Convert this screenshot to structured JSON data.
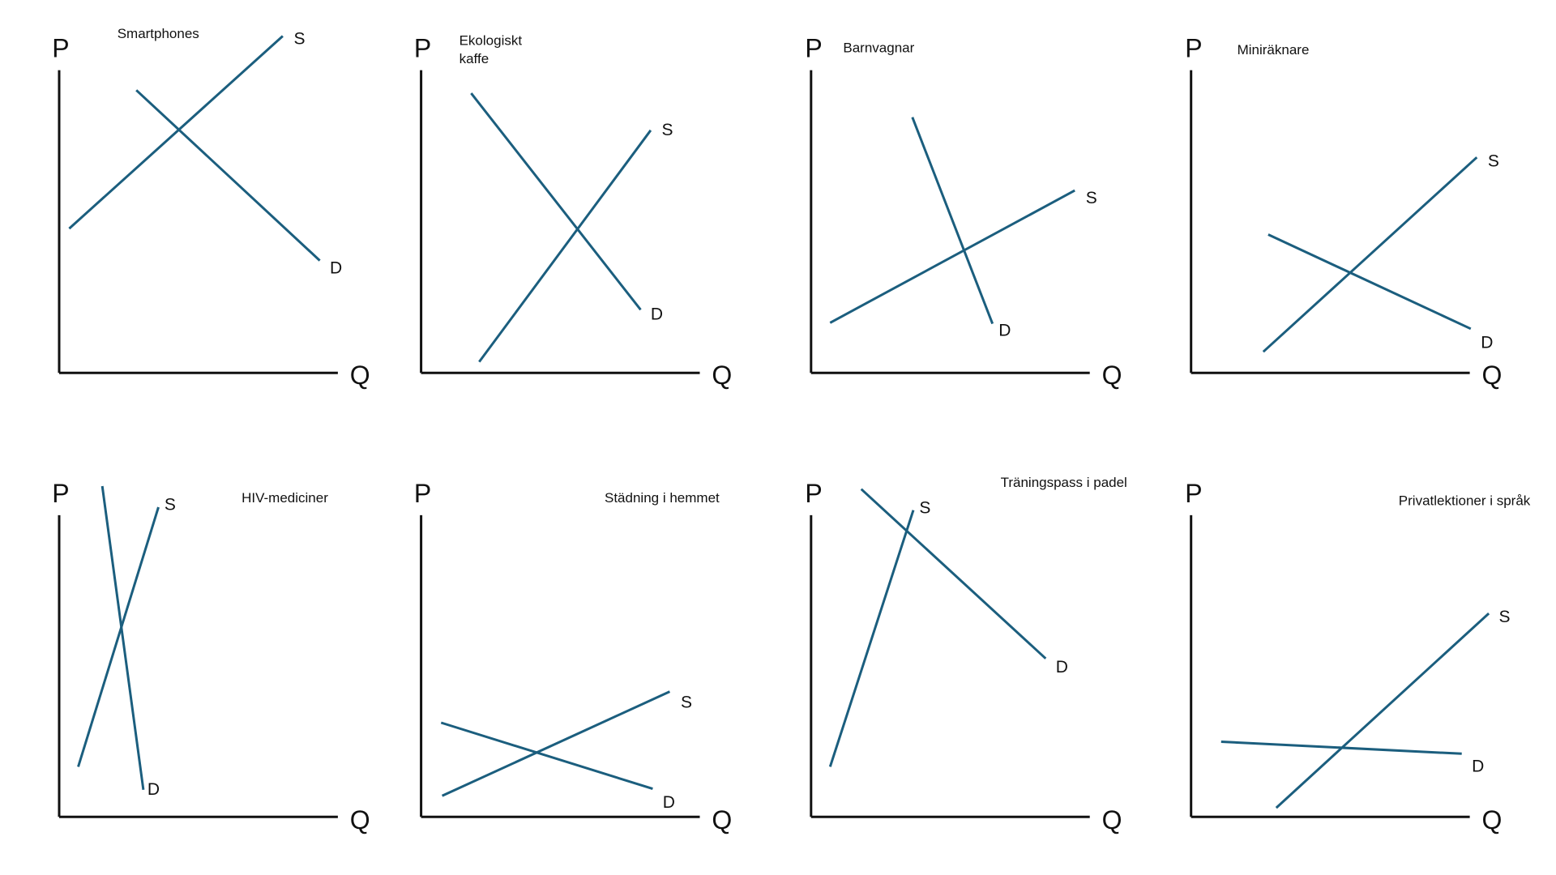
{
  "colors": {
    "curve": "#1b5e7e",
    "axis": "#111111",
    "background": "#ffffff"
  },
  "axis_labels": {
    "price": "P",
    "quantity": "Q"
  },
  "curve_labels": {
    "supply": "S",
    "demand": "D"
  },
  "diagrams": [
    {
      "id": "smartphones",
      "title": [
        "Smartphones"
      ]
    },
    {
      "id": "ekologiskt-kaffe",
      "title": [
        "Ekologiskt",
        "kaffe"
      ]
    },
    {
      "id": "barnvagnar",
      "title": [
        "Barnvagnar"
      ]
    },
    {
      "id": "miniräknare",
      "title": [
        "Miniräknare"
      ]
    },
    {
      "id": "hiv-mediciner",
      "title": [
        "HIV-mediciner"
      ]
    },
    {
      "id": "städning-i-hemmet",
      "title": [
        "Städning i hemmet"
      ]
    },
    {
      "id": "traningspass-i-padel",
      "title": [
        "Träningspass i padel"
      ]
    },
    {
      "id": "privatlektioner-i-sprak",
      "title": [
        "Privatlektioner i språk"
      ]
    }
  ]
}
